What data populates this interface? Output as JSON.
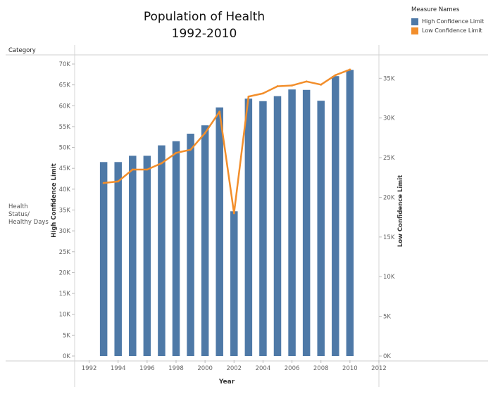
{
  "title_line1": "Population of Health",
  "title_line2": "1992-2010",
  "legend": {
    "title": "Measure Names",
    "items": [
      {
        "label": "High Confidence Limit",
        "color": "#4e79a7"
      },
      {
        "label": "Low Confidence Limit",
        "color": "#f28e2b"
      }
    ]
  },
  "category_header": "Category",
  "row_label": "Health\nStatus/\nHealthy Days",
  "chart_data": {
    "type": "bar",
    "xlabel": "Year",
    "ylabel_left": "High Confidence Limit",
    "ylabel_right": "Low Confidence Limit",
    "x_range": [
      1991,
      2012
    ],
    "x_ticks": [
      1992,
      1994,
      1996,
      1998,
      2000,
      2002,
      2004,
      2006,
      2008,
      2010,
      2012
    ],
    "y_left_range": [
      0,
      70000
    ],
    "y_left_ticks": [
      {
        "v": 0,
        "label": "0K"
      },
      {
        "v": 5000,
        "label": "5K"
      },
      {
        "v": 10000,
        "label": "10K"
      },
      {
        "v": 15000,
        "label": "15K"
      },
      {
        "v": 20000,
        "label": "20K"
      },
      {
        "v": 25000,
        "label": "25K"
      },
      {
        "v": 30000,
        "label": "30K"
      },
      {
        "v": 35000,
        "label": "35K"
      },
      {
        "v": 40000,
        "label": "40K"
      },
      {
        "v": 45000,
        "label": "45K"
      },
      {
        "v": 50000,
        "label": "50K"
      },
      {
        "v": 55000,
        "label": "55K"
      },
      {
        "v": 60000,
        "label": "60K"
      },
      {
        "v": 65000,
        "label": "65K"
      },
      {
        "v": 70000,
        "label": "70K"
      }
    ],
    "y_right_range": [
      0,
      36800
    ],
    "y_right_ticks": [
      {
        "v": 0,
        "label": "0K"
      },
      {
        "v": 5000,
        "label": "5K"
      },
      {
        "v": 10000,
        "label": "10K"
      },
      {
        "v": 15000,
        "label": "15K"
      },
      {
        "v": 20000,
        "label": "20K"
      },
      {
        "v": 25000,
        "label": "25K"
      },
      {
        "v": 30000,
        "label": "30K"
      },
      {
        "v": 35000,
        "label": "35K"
      }
    ],
    "series": [
      {
        "name": "High Confidence Limit",
        "type": "bar",
        "axis": "left",
        "color": "#4e79a7",
        "x": [
          1993,
          1994,
          1995,
          1996,
          1997,
          1998,
          1999,
          2000,
          2001,
          2002,
          2003,
          2004,
          2005,
          2006,
          2007,
          2008,
          2009,
          2010
        ],
        "values": [
          46500,
          46500,
          48000,
          48000,
          50500,
          51500,
          53300,
          55300,
          59600,
          34700,
          61700,
          61100,
          62300,
          63900,
          63800,
          61200,
          67100,
          68600
        ]
      },
      {
        "name": "Low Confidence Limit",
        "type": "line",
        "axis": "right",
        "color": "#f28e2b",
        "x": [
          1993,
          1994,
          1995,
          1996,
          1997,
          1998,
          1999,
          2000,
          2001,
          2002,
          2003,
          2004,
          2005,
          2006,
          2007,
          2008,
          2009,
          2010
        ],
        "values": [
          21800,
          22000,
          23500,
          23500,
          24300,
          25600,
          26000,
          28100,
          30800,
          18000,
          32700,
          33100,
          34000,
          34100,
          34600,
          34200,
          35400,
          36100
        ]
      }
    ]
  }
}
